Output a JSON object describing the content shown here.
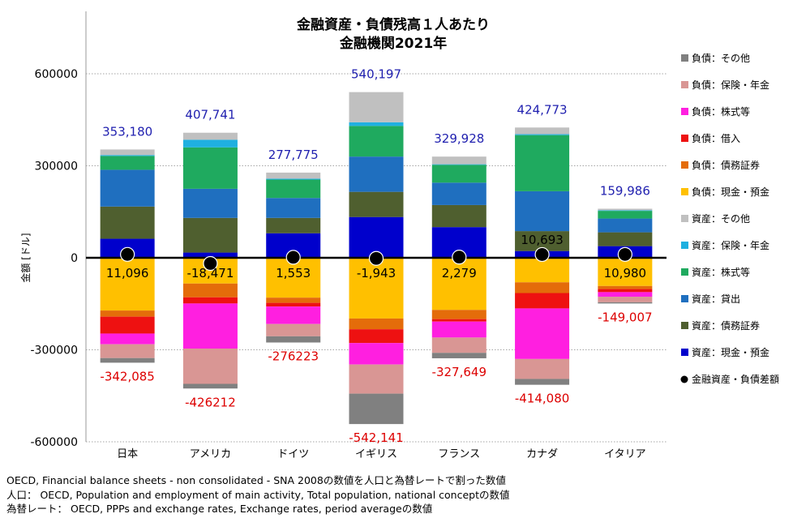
{
  "chart_data": {
    "type": "bar",
    "stacked": true,
    "title": [
      "金融資産・負債残高１人あたり",
      "金融機関2021年"
    ],
    "ylabel": "金額 [ドル]",
    "xlabel": "",
    "ylim": [
      -600000,
      600000
    ],
    "yticks": [
      600000,
      300000,
      0,
      -300000,
      -600000
    ],
    "yticklabels": [
      "600000",
      "300000",
      "0",
      "-300000",
      "-600000"
    ],
    "grid": true,
    "legend_position": "right",
    "categories": [
      "日本",
      "アメリカ",
      "ドイツ",
      "イギリス",
      "フランス",
      "カナダ",
      "イタリア"
    ],
    "asset_series": [
      {
        "name": "資産：現金・預金",
        "color": "#0000CC",
        "values": [
          62000,
          17000,
          80000,
          133000,
          100000,
          22000,
          38000
        ]
      },
      {
        "name": "資産：債務証券",
        "color": "#4F5F2F",
        "values": [
          105000,
          113000,
          50000,
          82000,
          72000,
          65000,
          45000
        ]
      },
      {
        "name": "資産：貸出",
        "color": "#1F6FBF",
        "values": [
          120000,
          95000,
          65000,
          115000,
          73000,
          130000,
          45000
        ]
      },
      {
        "name": "資産：株式等",
        "color": "#1FAA5F",
        "values": [
          45000,
          135000,
          60000,
          100000,
          58000,
          183000,
          25000
        ]
      },
      {
        "name": "資産：保険・年金",
        "color": "#1FB0E0",
        "values": [
          3000,
          25000,
          3000,
          12000,
          2000,
          3000,
          2000
        ]
      },
      {
        "name": "資産：その他",
        "color": "#C0C0C0",
        "values": [
          18180,
          22741,
          19775,
          98197,
          24928,
          21773,
          4986
        ]
      }
    ],
    "liability_series": [
      {
        "name": "負債：現金・預金",
        "color": "#FFC000",
        "values": [
          -172000,
          -84000,
          -130000,
          -198000,
          -170000,
          -80000,
          -92000
        ]
      },
      {
        "name": "負債：債務証券",
        "color": "#E46C0A",
        "values": [
          -20000,
          -45000,
          -17000,
          -35000,
          -30000,
          -35000,
          -10000
        ]
      },
      {
        "name": "負債：借入",
        "color": "#EE1111",
        "values": [
          -55000,
          -20000,
          -12000,
          -45000,
          -8000,
          -50000,
          -10000
        ]
      },
      {
        "name": "負債：株式等",
        "color": "#FF1FE0",
        "values": [
          -35000,
          -147000,
          -57000,
          -70000,
          -52000,
          -165000,
          -15000
        ]
      },
      {
        "name": "負債：保険・年金",
        "color": "#D99694",
        "values": [
          -45000,
          -115000,
          -40000,
          -95000,
          -50000,
          -65000,
          -18000
        ]
      },
      {
        "name": "負債：その他",
        "color": "#808080",
        "values": [
          -15085,
          -15212,
          -20223,
          -99141,
          -17649,
          -19080,
          -4007
        ]
      }
    ],
    "net_series": {
      "name": "金融資産・負債差額",
      "color": "#000000",
      "values": [
        11096,
        -18471,
        1553,
        -1943,
        2279,
        10693,
        10980
      ]
    },
    "asset_total_labels": [
      "353,180",
      "407,741",
      "277,775",
      "540,197",
      "329,928",
      "424,773",
      "159,986"
    ],
    "liability_total_labels": [
      "-342,085",
      "-426212",
      "-276223",
      "-542,141",
      "-327,649",
      "-414,080",
      "-149,007"
    ],
    "net_labels": [
      "11,096",
      "-18,471",
      "1,553",
      "-1,943",
      "2,279",
      "10,693",
      "10,980"
    ],
    "legend_order": [
      "負債：その他",
      "負債：保険・年金",
      "負債：株式等",
      "負債：借入",
      "負債：債務証券",
      "負債：現金・預金",
      "資産：その他",
      "資産：保険・年金",
      "資産：株式等",
      "資産：貸出",
      "資産：債務証券",
      "資産：現金・預金",
      "金融資産・負債差額"
    ],
    "asset_label_color": "#1F1FAF",
    "liability_label_color": "#DD0000"
  },
  "footnotes": [
    "OECD, Financial balance sheets -  non consolidated - SNA 2008の数値を人口と為替レートで割った数値",
    "人口： OECD, Population and employment of main activity, Total population, national conceptの数値",
    "為替レート： OECD, PPPs and exchange rates, Exchange rates, period averageの数値"
  ]
}
